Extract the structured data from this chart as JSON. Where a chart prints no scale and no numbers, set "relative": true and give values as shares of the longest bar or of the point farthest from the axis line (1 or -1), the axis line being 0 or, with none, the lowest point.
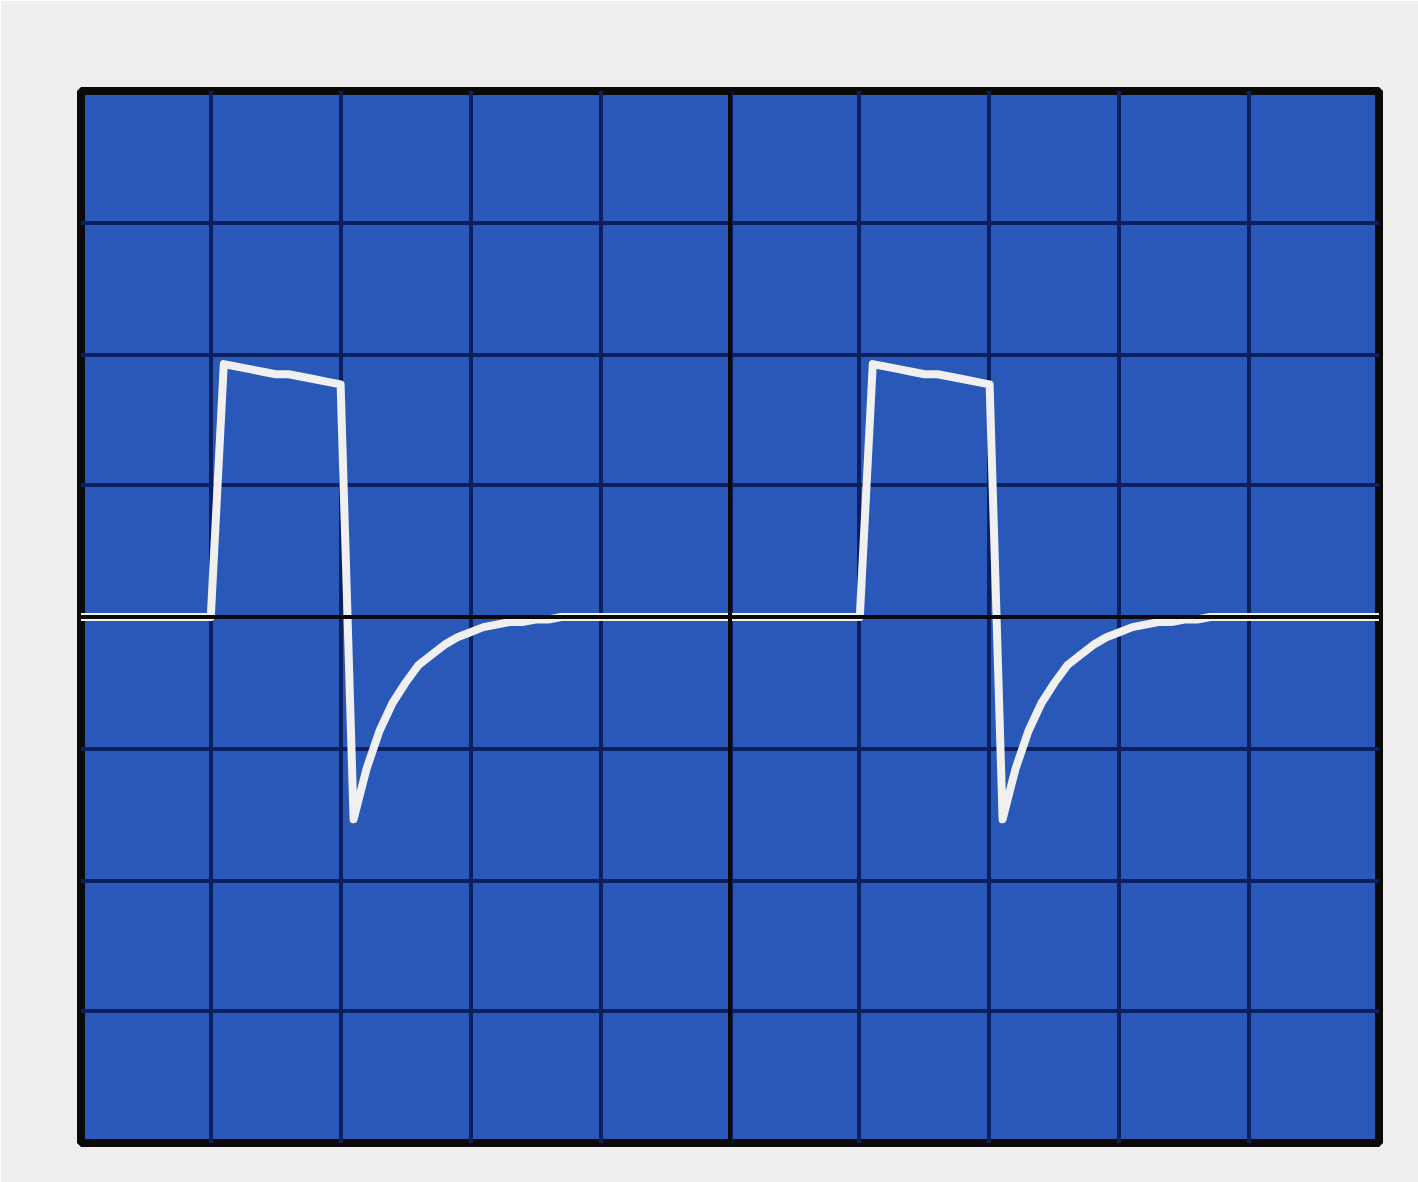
{
  "chart_data": {
    "type": "line",
    "relative": true,
    "grid": true,
    "tick_labels": false,
    "marker": "none",
    "line_style": "solid",
    "categories": [
      null,
      null,
      null,
      null,
      null,
      null,
      null,
      null,
      null,
      null,
      null,
      null,
      null,
      null,
      null,
      null,
      null,
      null,
      null,
      null,
      null,
      null,
      null,
      null,
      null,
      null,
      null,
      null,
      null,
      null,
      null,
      null,
      null,
      null,
      null,
      null,
      null,
      null,
      null,
      null,
      null,
      null,
      null,
      null,
      null,
      null,
      null,
      null,
      null,
      null,
      null,
      null,
      null,
      null,
      null,
      null,
      null,
      null,
      null,
      null,
      null,
      null,
      null,
      null,
      null,
      null,
      null,
      null,
      null,
      null,
      null,
      null,
      null,
      null,
      null,
      null,
      null,
      null,
      null,
      null,
      null,
      null,
      null,
      null,
      null,
      null,
      null,
      null,
      null,
      null,
      null,
      null,
      null,
      null,
      null,
      null,
      null,
      null,
      null,
      null,
      null
    ],
    "series": [
      {
        "color": "#f0f0f0",
        "values": [
          0,
          0,
          0,
          0,
          0,
          0,
          0,
          0,
          0,
          0,
          0,
          1.0,
          0.99,
          0.98,
          0.97,
          0.96,
          0.96,
          0.95,
          0.94,
          0.93,
          0.92,
          -0.8,
          -0.6,
          -0.45,
          -0.34,
          -0.26,
          -0.19,
          -0.15,
          -0.11,
          -0.08,
          -0.06,
          -0.04,
          -0.03,
          -0.02,
          -0.02,
          -0.01,
          -0.01,
          0,
          0,
          0,
          0,
          0,
          0,
          0,
          0,
          0,
          0,
          0,
          0,
          0,
          0,
          0,
          0,
          0,
          0,
          0,
          0,
          0,
          0,
          0,
          0,
          1.0,
          0.99,
          0.98,
          0.97,
          0.96,
          0.96,
          0.95,
          0.94,
          0.93,
          0.92,
          -0.8,
          -0.6,
          -0.45,
          -0.34,
          -0.26,
          -0.19,
          -0.15,
          -0.11,
          -0.08,
          -0.06,
          -0.04,
          -0.03,
          -0.02,
          -0.02,
          -0.01,
          -0.01,
          0,
          0,
          0,
          0,
          0,
          0,
          0,
          0,
          0,
          0,
          0,
          0,
          0,
          0
        ]
      }
    ]
  }
}
